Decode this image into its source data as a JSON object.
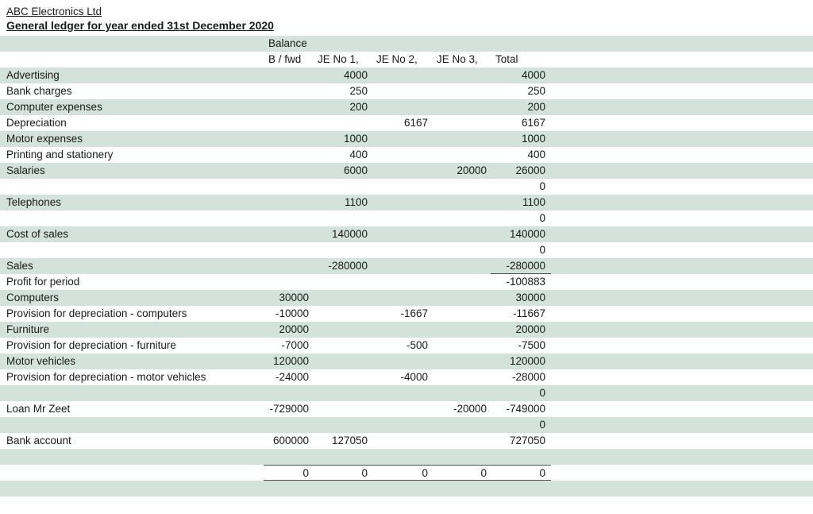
{
  "page": {
    "company": "ABC Electronics Ltd",
    "title": "General ledger for year ended 31st December 2020"
  },
  "table": {
    "header_group": "Balance",
    "columns": [
      "B / fwd",
      "JE No 1,",
      "JE No 2,",
      "JE No 3,",
      "Total"
    ],
    "rows": [
      {
        "label": "Advertising",
        "bfwd": "",
        "je1": "4000",
        "je2": "",
        "je3": "",
        "total": "4000"
      },
      {
        "label": "Bank charges",
        "bfwd": "",
        "je1": "250",
        "je2": "",
        "je3": "",
        "total": "250"
      },
      {
        "label": "Computer expenses",
        "bfwd": "",
        "je1": "200",
        "je2": "",
        "je3": "",
        "total": "200"
      },
      {
        "label": "Depreciation",
        "bfwd": "",
        "je1": "",
        "je2": "6167",
        "je3": "",
        "total": "6167"
      },
      {
        "label": "Motor expenses",
        "bfwd": "",
        "je1": "1000",
        "je2": "",
        "je3": "",
        "total": "1000"
      },
      {
        "label": "Printing and stationery",
        "bfwd": "",
        "je1": "400",
        "je2": "",
        "je3": "",
        "total": "400"
      },
      {
        "label": "Salaries",
        "bfwd": "",
        "je1": "6000",
        "je2": "",
        "je3": "20000",
        "total": "26000"
      },
      {
        "label": "",
        "bfwd": "",
        "je1": "",
        "je2": "",
        "je3": "",
        "total": "0"
      },
      {
        "label": "Telephones",
        "bfwd": "",
        "je1": "1100",
        "je2": "",
        "je3": "",
        "total": "1100"
      },
      {
        "label": "",
        "bfwd": "",
        "je1": "",
        "je2": "",
        "je3": "",
        "total": "0"
      },
      {
        "label": "Cost of sales",
        "bfwd": "",
        "je1": "140000",
        "je2": "",
        "je3": "",
        "total": "140000"
      },
      {
        "label": "",
        "bfwd": "",
        "je1": "",
        "je2": "",
        "je3": "",
        "total": "0"
      },
      {
        "label": "Sales",
        "bfwd": "",
        "je1": "-280000",
        "je2": "",
        "je3": "",
        "total": "-280000",
        "total_rule": true
      },
      {
        "label": "Profit for period",
        "bfwd": "",
        "je1": "",
        "je2": "",
        "je3": "",
        "total": "-100883"
      },
      {
        "label": "Computers",
        "bfwd": "30000",
        "je1": "",
        "je2": "",
        "je3": "",
        "total": "30000"
      },
      {
        "label": "Provision for depreciation - computers",
        "bfwd": "-10000",
        "je1": "",
        "je2": "-1667",
        "je3": "",
        "total": "-11667"
      },
      {
        "label": "Furniture",
        "bfwd": "20000",
        "je1": "",
        "je2": "",
        "je3": "",
        "total": "20000"
      },
      {
        "label": "Provision for depreciation - furniture",
        "bfwd": "-7000",
        "je1": "",
        "je2": "-500",
        "je3": "",
        "total": "-7500"
      },
      {
        "label": "Motor vehicles",
        "bfwd": "120000",
        "je1": "",
        "je2": "",
        "je3": "",
        "total": "120000"
      },
      {
        "label": "Provision for depreciation - motor vehicles",
        "bfwd": "-24000",
        "je1": "",
        "je2": "-4000",
        "je3": "",
        "total": "-28000"
      },
      {
        "label": "",
        "bfwd": "",
        "je1": "",
        "je2": "",
        "je3": "",
        "total": "0"
      },
      {
        "label": "Loan Mr Zeet",
        "bfwd": "-729000",
        "je1": "",
        "je2": "",
        "je3": "-20000",
        "total": "-749000"
      },
      {
        "label": "",
        "bfwd": "",
        "je1": "",
        "je2": "",
        "je3": "",
        "total": "0"
      },
      {
        "label": "Bank account",
        "bfwd": "600000",
        "je1": "127050",
        "je2": "",
        "je3": "",
        "total": "727050"
      },
      {
        "label": "",
        "bfwd": "",
        "je1": "",
        "je2": "",
        "je3": "",
        "total": ""
      },
      {
        "label": "",
        "bfwd": "0",
        "je1": "0",
        "je2": "0",
        "je3": "0",
        "total": "0",
        "is_totals": true
      },
      {
        "label": "",
        "bfwd": "",
        "je1": "",
        "je2": "",
        "je3": "",
        "total": ""
      }
    ]
  },
  "colors": {
    "band_green": "#d3e3db",
    "rule_gray": "#4d4d4d",
    "text": "#1a1a1a"
  }
}
